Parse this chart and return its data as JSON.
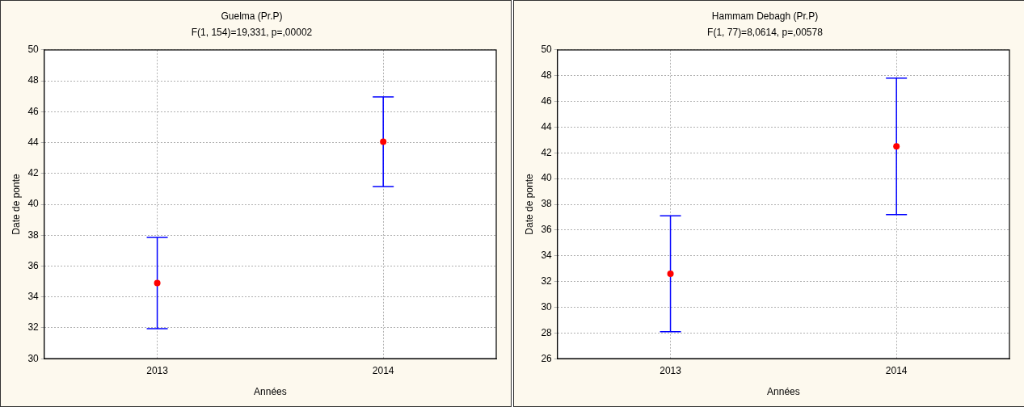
{
  "chart_data": [
    {
      "type": "scatter",
      "title": "Guelma (Pr.P)",
      "subtitle": "F(1, 154)=19,331, p=,00002",
      "xlabel": "Années",
      "ylabel": "Date de ponte",
      "categories": [
        "2013",
        "2014"
      ],
      "grid": true,
      "legend": false,
      "marker": "circle",
      "ylim": [
        30,
        50
      ],
      "yticks": [
        30,
        32,
        34,
        36,
        38,
        40,
        42,
        44,
        46,
        48,
        50
      ],
      "series": [
        {
          "color": "#ff0000",
          "values": [
            34.9,
            44.05
          ],
          "errors": [
            2.95,
            2.9
          ]
        }
      ]
    },
    {
      "type": "scatter",
      "title": "Hammam Debagh (Pr.P)",
      "subtitle": "F(1, 77)=8,0614, p=,00578",
      "xlabel": "Années",
      "ylabel": "Date de ponte",
      "categories": [
        "2013",
        "2014"
      ],
      "grid": true,
      "legend": false,
      "marker": "circle",
      "ylim": [
        26,
        50
      ],
      "yticks": [
        26,
        28,
        30,
        32,
        34,
        36,
        38,
        40,
        42,
        44,
        46,
        48,
        50
      ],
      "series": [
        {
          "color": "#ff0000",
          "values": [
            32.6,
            42.5
          ],
          "errors": [
            4.5,
            5.3
          ]
        }
      ]
    }
  ]
}
